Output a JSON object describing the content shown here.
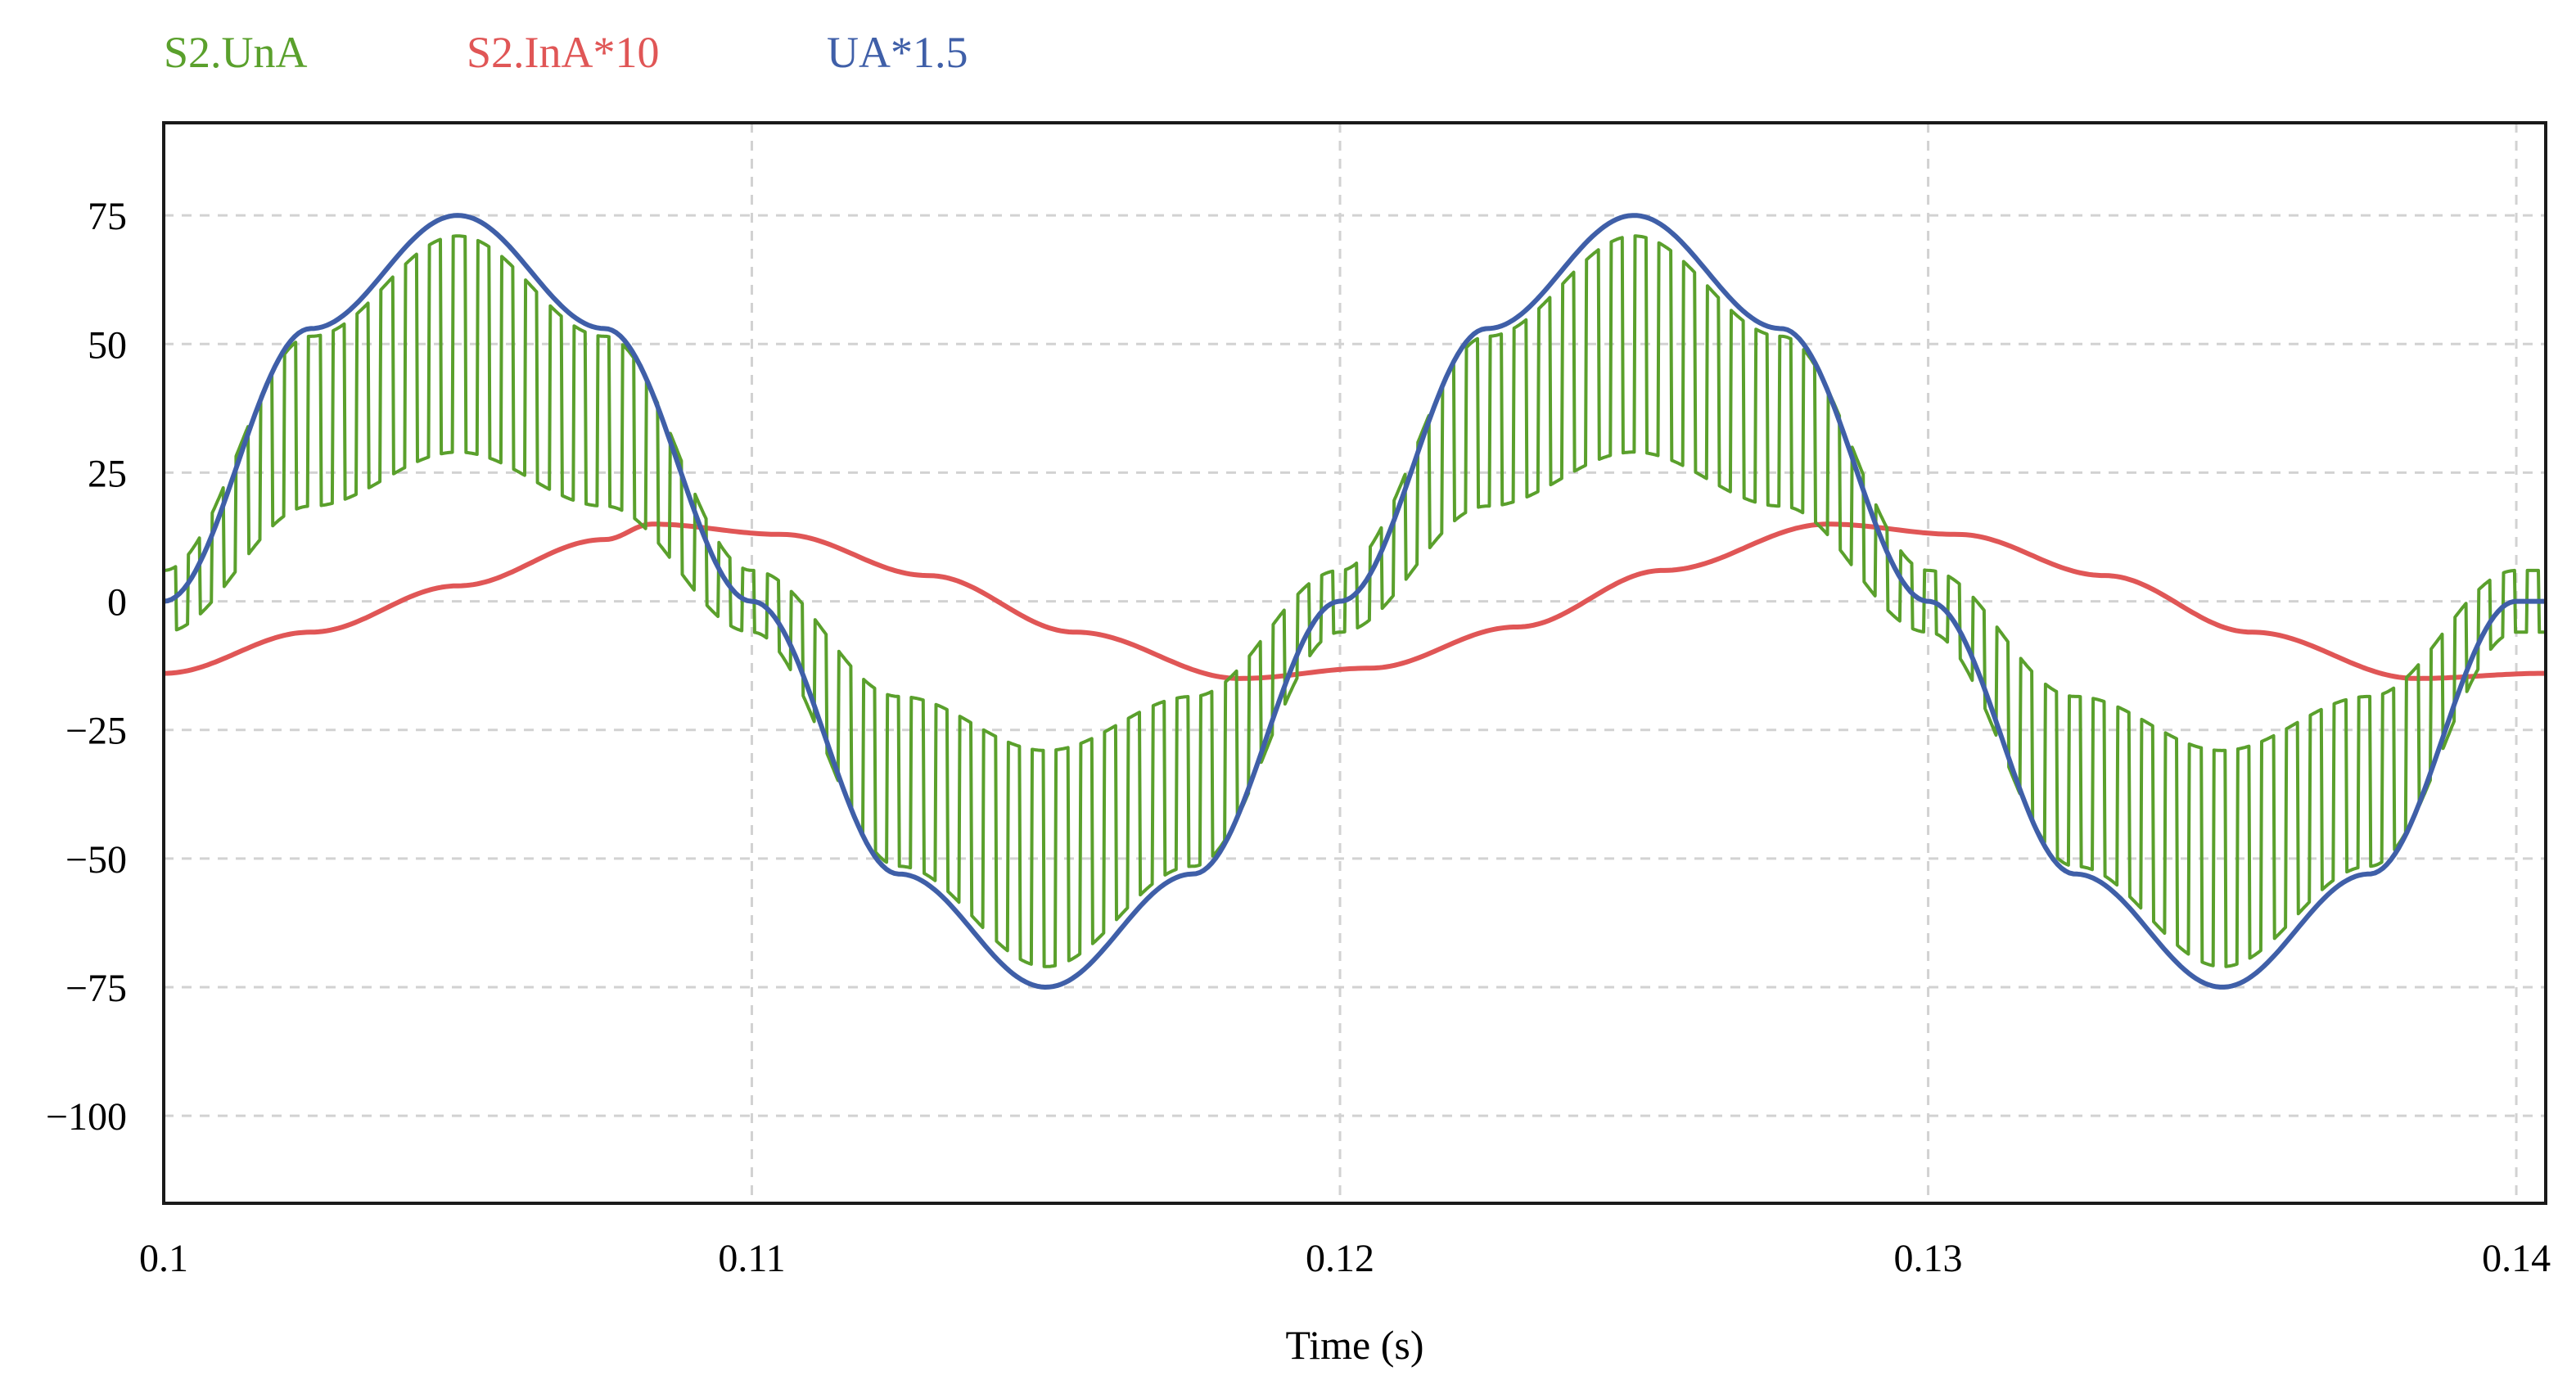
{
  "chart_data": {
    "type": "line",
    "title": "",
    "xlabel": "Time (s)",
    "ylabel": "",
    "xlim": [
      0.1,
      0.1405
    ],
    "ylim": [
      -117,
      93
    ],
    "grid": true,
    "legend_position": "top-left",
    "x_ticks": [
      {
        "value": 0.1,
        "label": "0.1"
      },
      {
        "value": 0.11,
        "label": "0.11"
      },
      {
        "value": 0.12,
        "label": "0.12"
      },
      {
        "value": 0.13,
        "label": "0.13"
      },
      {
        "value": 0.14,
        "label": "0.14"
      }
    ],
    "y_ticks": [
      {
        "value": 75,
        "label": "75"
      },
      {
        "value": 50,
        "label": "50"
      },
      {
        "value": 25,
        "label": "25"
      },
      {
        "value": 0,
        "label": "0"
      },
      {
        "value": -25,
        "label": "−25"
      },
      {
        "value": -50,
        "label": "−50"
      },
      {
        "value": -75,
        "label": "−75"
      },
      {
        "value": -100,
        "label": "−100"
      }
    ],
    "series": [
      {
        "name": "S2.UnA",
        "color": "#5AA02C",
        "x": [
          0.1,
          0.1025,
          0.105,
          0.1075,
          0.11,
          0.1125,
          0.115,
          0.1175,
          0.12,
          0.1225,
          0.125,
          0.1275,
          0.13,
          0.1325,
          0.135,
          0.1375,
          0.14,
          0.1405
        ],
        "values": [
          0,
          35,
          50,
          35,
          0,
          -35,
          -50,
          -35,
          0,
          35,
          50,
          35,
          0,
          -35,
          -50,
          -35,
          0,
          0
        ]
      },
      {
        "name": "S2.InA*10",
        "color": "#E05656",
        "x": [
          0.1,
          0.1025,
          0.105,
          0.1075,
          0.1083,
          0.1105,
          0.113,
          0.1155,
          0.1183,
          0.1205,
          0.123,
          0.1255,
          0.1283,
          0.1305,
          0.133,
          0.1355,
          0.1383,
          0.1405
        ],
        "values": [
          -14,
          -6,
          3,
          12,
          15,
          13,
          5,
          -6,
          -15,
          -13,
          -5,
          6,
          15,
          13,
          5,
          -6,
          -15,
          -14
        ]
      },
      {
        "name": "UA*1.5",
        "color": "#3F5FA8",
        "x": [
          0.1,
          0.1025,
          0.105,
          0.1075,
          0.11,
          0.1125,
          0.115,
          0.1175,
          0.12,
          0.1225,
          0.125,
          0.1275,
          0.13,
          0.1325,
          0.135,
          0.1375,
          0.14,
          0.1405
        ],
        "values": [
          0,
          53,
          75,
          53,
          0,
          -53,
          -75,
          -53,
          0,
          53,
          75,
          53,
          0,
          -53,
          -75,
          -53,
          0,
          0
        ]
      }
    ]
  }
}
